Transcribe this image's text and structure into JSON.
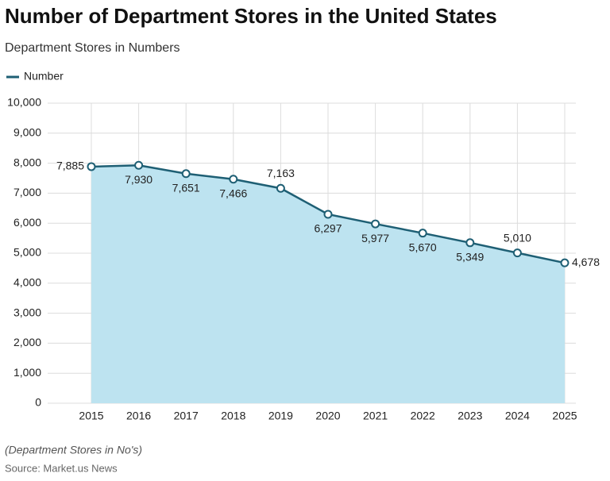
{
  "chart_data": {
    "type": "line",
    "title": "Number of Department Stores in the United States",
    "subtitle": "Department Stores in Numbers",
    "categories": [
      "2015",
      "2016",
      "2017",
      "2018",
      "2019",
      "2020",
      "2021",
      "2022",
      "2023",
      "2024",
      "2025"
    ],
    "series": [
      {
        "name": "Number",
        "color": "#1e5f74",
        "fill": "#bde3f0",
        "values": [
          7885,
          7930,
          7651,
          7466,
          7163,
          6297,
          5977,
          5670,
          5349,
          5010,
          4678
        ],
        "value_labels": [
          "7,885",
          "7,930",
          "7,651",
          "7,466",
          "7,163",
          "6,297",
          "5,977",
          "5,670",
          "5,349",
          "5,010",
          "4,678"
        ]
      }
    ],
    "ylim": [
      0,
      10000
    ],
    "yticks": [
      0,
      {
        "value": 1000,
        "label": "1,000"
      },
      {
        "value": 2000,
        "label": "2,000"
      },
      {
        "value": 3000,
        "label": "3,000"
      },
      {
        "value": 4000,
        "label": "4,000"
      },
      {
        "value": 5000,
        "label": "5,000"
      },
      {
        "value": 6000,
        "label": "6,000"
      },
      {
        "value": 7000,
        "label": "7,000"
      },
      {
        "value": 8000,
        "label": "8,000"
      },
      {
        "value": 9000,
        "label": "9,000"
      },
      {
        "value": 10000,
        "label": "10,000"
      }
    ],
    "grid": true,
    "legend": "top-left",
    "note": "(Department Stores in No's)",
    "source": "Source: Market.us News"
  }
}
